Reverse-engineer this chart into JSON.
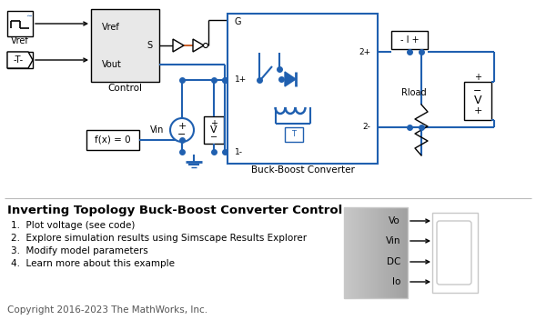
{
  "title": "Inverting Topology Buck-Boost Converter Control",
  "items": [
    "1.  Plot voltage (see code)",
    "2.  Explore simulation results using Simscape Results Explorer",
    "3.  Modify model parameters",
    "4.  Learn more about this example"
  ],
  "copyright": "Copyright 2016-2023 The MathWorks, Inc.",
  "bg_color": "#ffffff",
  "blue_color": "#2060b0",
  "black_color": "#000000",
  "light_gray": "#e8e8e8",
  "mid_gray": "#c8c8c8",
  "red_color": "#c04000"
}
